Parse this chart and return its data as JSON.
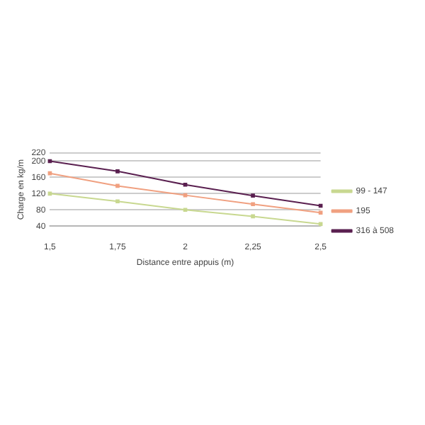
{
  "chart_data": {
    "type": "line",
    "xlabel": "Distance entre appuis (m)",
    "ylabel": "Charge en kg/m",
    "categories": [
      "1,5",
      "1,75",
      "2",
      "2,25",
      "2,5"
    ],
    "series": [
      {
        "name": "99 - 147",
        "color": "#c8d890",
        "values": [
          120,
          101,
          80,
          64,
          45
        ]
      },
      {
        "name": "195",
        "color": "#f0a080",
        "values": [
          170,
          139,
          116,
          94,
          73
        ]
      },
      {
        "name": "316 à 508",
        "color": "#5a2050",
        "values": [
          200,
          175,
          142,
          115,
          90
        ]
      }
    ],
    "ylim": [
      40,
      220
    ],
    "yticks": [
      40,
      80,
      120,
      160,
      200,
      220
    ],
    "grid": "y",
    "legend": "right",
    "marker": "square"
  }
}
